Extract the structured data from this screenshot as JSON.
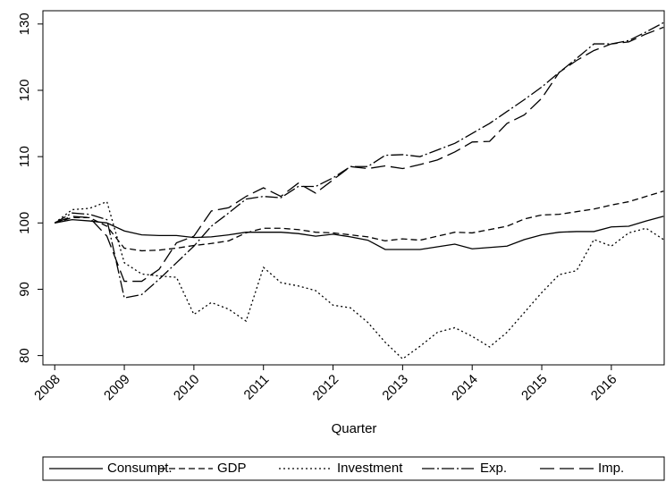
{
  "chart_data": {
    "type": "line",
    "x_label": "Quarter",
    "x": [
      2008,
      2008.25,
      2008.5,
      2008.75,
      2009,
      2009.25,
      2009.5,
      2009.75,
      2010,
      2010.25,
      2010.5,
      2010.75,
      2011,
      2011.25,
      2011.5,
      2011.75,
      2012,
      2012.25,
      2012.5,
      2012.75,
      2013,
      2013.25,
      2013.5,
      2013.75,
      2014,
      2014.25,
      2014.5,
      2014.75,
      2015,
      2015.25,
      2015.5,
      2015.75,
      2016,
      2016.25,
      2016.5,
      2016.75
    ],
    "series": [
      {
        "name": "Consumpt.",
        "color": "#000000",
        "dash": "none",
        "values": [
          100,
          100.5,
          100.3,
          100,
          98.8,
          98.2,
          98.1,
          98.1,
          97.8,
          97.9,
          98.2,
          98.6,
          98.6,
          98.6,
          98.4,
          98.0,
          98.3,
          97.9,
          97.4,
          96.0,
          96.0,
          96.0,
          96.4,
          96.8,
          96.1,
          96.3,
          96.5,
          97.5,
          98.2,
          98.6,
          98.7,
          98.7,
          99.4,
          99.5,
          100.3,
          101.0
        ]
      },
      {
        "name": "GDP",
        "color": "#000000",
        "dash": "7,4",
        "values": [
          100,
          100.8,
          100.8,
          99.5,
          96.2,
          95.8,
          95.9,
          96.2,
          96.6,
          96.9,
          97.3,
          98.5,
          99.2,
          99.2,
          99.0,
          98.6,
          98.5,
          98.2,
          97.9,
          97.3,
          97.6,
          97.4,
          98.0,
          98.6,
          98.5,
          99.0,
          99.5,
          100.6,
          101.2,
          101.3,
          101.7,
          102.1,
          102.7,
          103.2,
          104.0,
          104.8
        ]
      },
      {
        "name": "Investment",
        "color": "#000000",
        "dash": "2,3",
        "values": [
          100,
          102,
          102.2,
          103.2,
          94,
          92.3,
          92,
          91.8,
          86.2,
          88,
          87,
          85.2,
          93.3,
          91,
          90.5,
          89.8,
          87.6,
          87.2,
          85,
          82,
          79.5,
          81.4,
          83.5,
          84.2,
          82.9,
          81.3,
          83.5,
          86.5,
          89.5,
          92.2,
          92.8,
          97.5,
          96.5,
          98.5,
          99.2,
          97.5
        ]
      },
      {
        "name": "Exp.",
        "color": "#000000",
        "dash": "14,3,2,3",
        "values": [
          100,
          101.5,
          101.3,
          100.5,
          88.7,
          89.2,
          91.5,
          94,
          96.5,
          99.5,
          101.5,
          103.6,
          104,
          103.8,
          105.5,
          105.5,
          106.8,
          108.5,
          108.5,
          110.2,
          110.3,
          110,
          111,
          112,
          113.5,
          115,
          116.8,
          118.6,
          120.5,
          122.7,
          124.8,
          127,
          127,
          127.5,
          128.8,
          130.2
        ]
      },
      {
        "name": "Imp.",
        "color": "#000000",
        "dash": "16,6",
        "values": [
          100,
          101,
          100.8,
          98,
          91.2,
          91.2,
          93,
          97,
          98,
          101.8,
          102.3,
          104,
          105.3,
          104,
          106,
          104.5,
          106.5,
          108.5,
          108.2,
          108.6,
          108.2,
          108.8,
          109.5,
          110.7,
          112.2,
          112.3,
          115,
          116.3,
          118.8,
          122.7,
          124.5,
          126,
          127,
          127.3,
          128.5,
          129.5
        ]
      }
    ],
    "xlim": [
      2007.83,
      2016.76
    ],
    "xticks": [
      2008,
      2009,
      2010,
      2011,
      2012,
      2013,
      2014,
      2015,
      2016
    ],
    "ylim": [
      78.6,
      132
    ],
    "yticks": [
      80,
      90,
      100,
      110,
      120,
      130
    ],
    "grid": false,
    "legend": "bottom"
  }
}
